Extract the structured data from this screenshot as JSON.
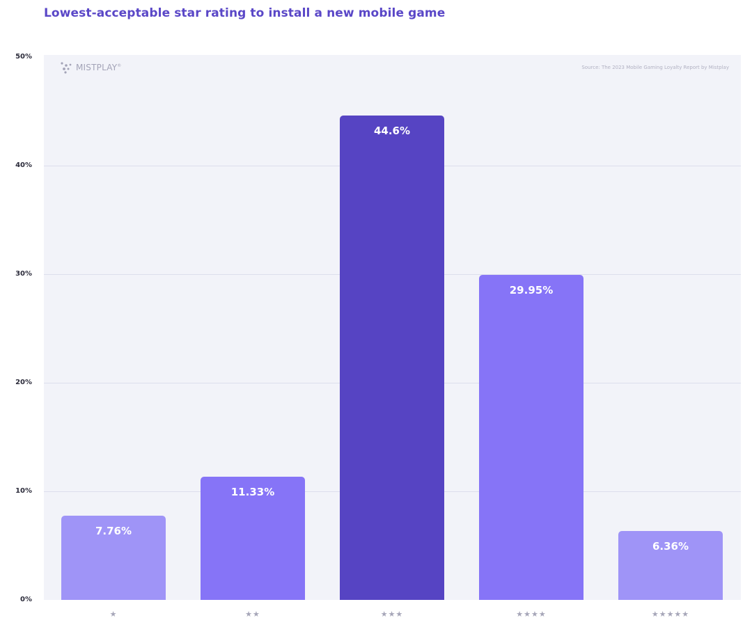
{
  "chart_data": {
    "type": "bar",
    "title": "Lowest-acceptable star rating to install a new mobile game",
    "categories": [
      "★",
      "★★",
      "★★★",
      "★★★★",
      "★★★★★"
    ],
    "values": [
      7.76,
      11.33,
      44.6,
      29.95,
      6.36
    ],
    "data_labels": [
      "7.76%",
      "11.33%",
      "44.6%",
      "29.95%",
      "6.36%"
    ],
    "bar_colors": [
      "#9f94f7",
      "#8674f7",
      "#5644c3",
      "#8674f7",
      "#9f94f7"
    ],
    "ylim": [
      0,
      50
    ],
    "yticks": [
      0,
      10,
      20,
      30,
      40,
      50
    ],
    "ytick_labels": [
      "0%",
      "10%",
      "20%",
      "30%",
      "40%",
      "50%"
    ],
    "xlabel": "",
    "ylabel": "",
    "grid": true
  },
  "brand": {
    "logo_text": "MISTPLAY",
    "logo_mark": "®",
    "source": "Source: The 2023 Mobile Gaming Loyalty Report by Mistplay"
  },
  "colors": {
    "title": "#5a47c7",
    "plot_background": "#f2f3f9",
    "gridline": "#dcdeec"
  }
}
